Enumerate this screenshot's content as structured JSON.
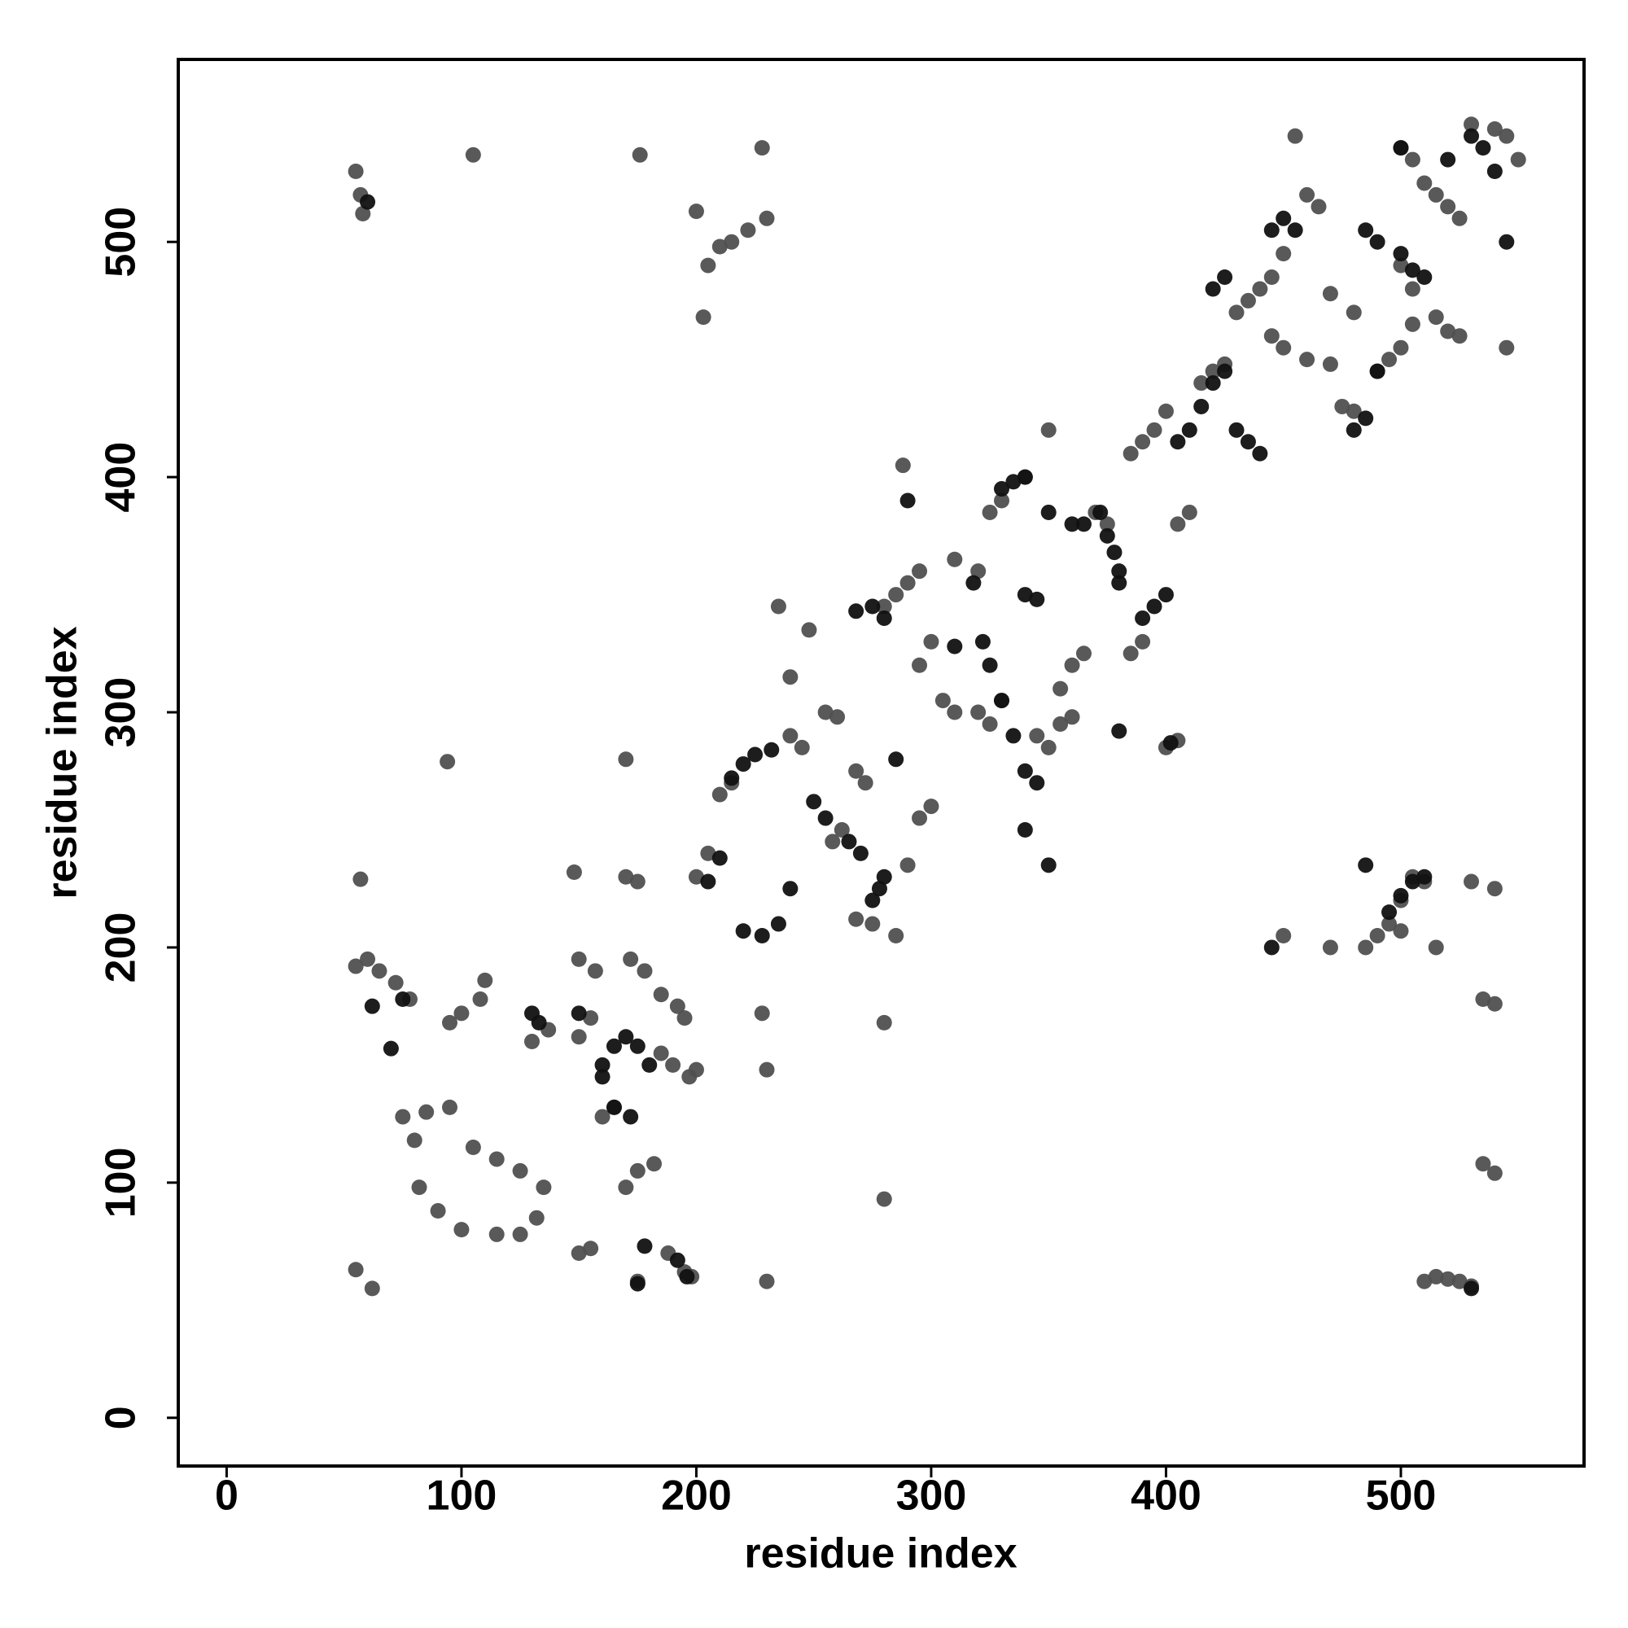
{
  "chart_data": {
    "type": "scatter",
    "xlabel": "residue index",
    "ylabel": "residue index",
    "xlim": [
      -20.6,
      578
    ],
    "ylim": [
      -20.5,
      577.6
    ],
    "xticks": [
      0,
      100,
      200,
      300,
      400,
      500
    ],
    "yticks": [
      0,
      100,
      200,
      300,
      400,
      500
    ],
    "grid": false,
    "series": [
      {
        "color": "#505050",
        "x": [
          55,
          57,
          58,
          105,
          176,
          200,
          203,
          205,
          210,
          215,
          222,
          228,
          230,
          57,
          94,
          170,
          55,
          60,
          65,
          72,
          78,
          85,
          80,
          82,
          90,
          100,
          115,
          125,
          132,
          135,
          125,
          115,
          105,
          95,
          75,
          95,
          100,
          108,
          110,
          130,
          137,
          150,
          155,
          150,
          157,
          148,
          160,
          165,
          170,
          175,
          182,
          172,
          178,
          185,
          192,
          195,
          185,
          190,
          197,
          200,
          170,
          175,
          150,
          155,
          175,
          188,
          195,
          198,
          55,
          62,
          200,
          205,
          210,
          215,
          240,
          245,
          235,
          240,
          248,
          255,
          260,
          258,
          262,
          268,
          272,
          268,
          275,
          290,
          295,
          300,
          295,
          300,
          305,
          310,
          280,
          285,
          290,
          295,
          288,
          310,
          320,
          325,
          330,
          340,
          350,
          320,
          325,
          330,
          355,
          360,
          365,
          345,
          350,
          355,
          360,
          370,
          375,
          385,
          390,
          395,
          400,
          405,
          410,
          415,
          420,
          425,
          385,
          390,
          400,
          405,
          430,
          435,
          440,
          445,
          450,
          455,
          460,
          465,
          445,
          450,
          460,
          470,
          475,
          480,
          470,
          480,
          490,
          495,
          500,
          505,
          500,
          505,
          510,
          515,
          520,
          525,
          530,
          540,
          545,
          550,
          500,
          505,
          515,
          520,
          525,
          545,
          485,
          490,
          495,
          500,
          505,
          510,
          450,
          470,
          500,
          515,
          530,
          540,
          535,
          540,
          535,
          540,
          510,
          515,
          520,
          525,
          530,
          280,
          280,
          230,
          230,
          228,
          285
        ],
        "values": [
          530,
          520,
          512,
          537,
          537,
          513,
          468,
          490,
          498,
          500,
          505,
          540,
          510,
          229,
          279,
          280,
          192,
          195,
          190,
          185,
          178,
          130,
          118,
          98,
          88,
          80,
          78,
          78,
          85,
          98,
          105,
          110,
          115,
          132,
          128,
          168,
          172,
          178,
          186,
          160,
          165,
          162,
          170,
          195,
          190,
          232,
          128,
          132,
          98,
          105,
          108,
          195,
          190,
          180,
          175,
          170,
          155,
          150,
          145,
          148,
          230,
          228,
          70,
          72,
          58,
          70,
          62,
          60,
          63,
          55,
          230,
          240,
          265,
          270,
          290,
          285,
          345,
          315,
          335,
          300,
          298,
          245,
          250,
          275,
          270,
          212,
          210,
          235,
          255,
          260,
          320,
          330,
          305,
          300,
          345,
          350,
          355,
          360,
          405,
          365,
          360,
          385,
          390,
          400,
          420,
          300,
          295,
          305,
          310,
          320,
          325,
          290,
          285,
          295,
          298,
          385,
          380,
          410,
          415,
          420,
          428,
          380,
          385,
          440,
          445,
          448,
          325,
          330,
          285,
          288,
          470,
          475,
          480,
          485,
          495,
          545,
          520,
          515,
          460,
          455,
          450,
          448,
          430,
          428,
          478,
          470,
          445,
          450,
          455,
          465,
          540,
          535,
          525,
          520,
          515,
          510,
          550,
          548,
          545,
          535,
          490,
          480,
          468,
          462,
          460,
          455,
          200,
          205,
          210,
          220,
          230,
          228,
          205,
          200,
          207,
          200,
          228,
          225,
          178,
          176,
          108,
          104,
          58,
          60,
          59,
          58,
          56,
          93,
          168,
          58,
          148,
          172,
          205
        ]
      },
      {
        "color": "#111111",
        "x": [
          60,
          62,
          70,
          75,
          130,
          133,
          150,
          160,
          165,
          170,
          175,
          180,
          160,
          165,
          172,
          178,
          192,
          196,
          175,
          205,
          210,
          215,
          220,
          225,
          232,
          220,
          228,
          235,
          240,
          250,
          255,
          265,
          270,
          275,
          278,
          280,
          268,
          275,
          280,
          285,
          290,
          310,
          318,
          322,
          325,
          330,
          335,
          340,
          345,
          340,
          345,
          350,
          340,
          330,
          335,
          340,
          350,
          360,
          365,
          372,
          375,
          378,
          380,
          390,
          395,
          400,
          380,
          405,
          410,
          415,
          420,
          425,
          430,
          435,
          440,
          402,
          380,
          420,
          425,
          445,
          450,
          455,
          485,
          490,
          500,
          505,
          510,
          500,
          520,
          530,
          535,
          540,
          545,
          495,
          500,
          505,
          510,
          445,
          485,
          480,
          485,
          530,
          490
        ],
        "values": [
          517,
          175,
          157,
          178,
          172,
          168,
          172,
          150,
          158,
          162,
          158,
          150,
          145,
          132,
          128,
          73,
          67,
          60,
          57,
          228,
          238,
          272,
          278,
          282,
          284,
          207,
          205,
          210,
          225,
          262,
          255,
          245,
          240,
          220,
          225,
          230,
          343,
          345,
          340,
          280,
          390,
          328,
          355,
          330,
          320,
          305,
          290,
          275,
          270,
          350,
          348,
          235,
          250,
          395,
          398,
          400,
          385,
          380,
          380,
          385,
          375,
          368,
          355,
          340,
          345,
          350,
          360,
          415,
          420,
          430,
          440,
          445,
          420,
          415,
          410,
          287,
          292,
          480,
          485,
          505,
          510,
          505,
          505,
          500,
          495,
          488,
          485,
          540,
          535,
          545,
          540,
          530,
          500,
          215,
          222,
          228,
          230,
          200,
          235,
          420,
          425,
          55,
          445
        ]
      }
    ]
  }
}
